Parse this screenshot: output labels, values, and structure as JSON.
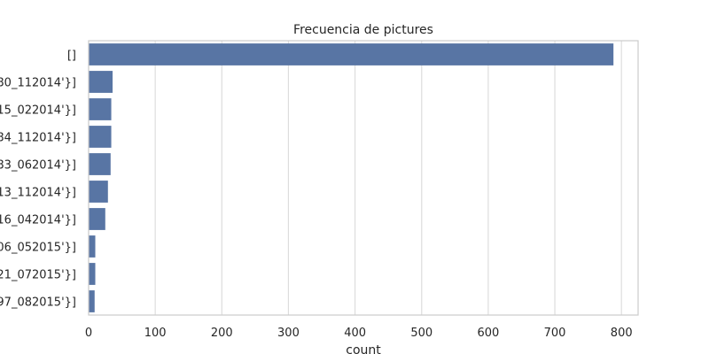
{
  "chart_data": {
    "type": "bar",
    "orientation": "horizontal",
    "title": "Frecuencia de pictures",
    "xlabel": "count",
    "ylabel": "",
    "xlim": [
      0,
      825
    ],
    "xticks": [
      0,
      100,
      200,
      300,
      400,
      500,
      600,
      700,
      800
    ],
    "grid": true,
    "bar_color": "#5875a4",
    "categories": [
      "[]",
      "80_112014'}]",
      "15_022014'}]",
      "84_112014'}]",
      "83_062014'}]",
      "13_112014'}]",
      "16_042014'}]",
      "06_052015'}]",
      "21_072015'}]",
      "97_082015'}]"
    ],
    "values": [
      788,
      36,
      34,
      34,
      33,
      29,
      25,
      10,
      10,
      9
    ]
  }
}
